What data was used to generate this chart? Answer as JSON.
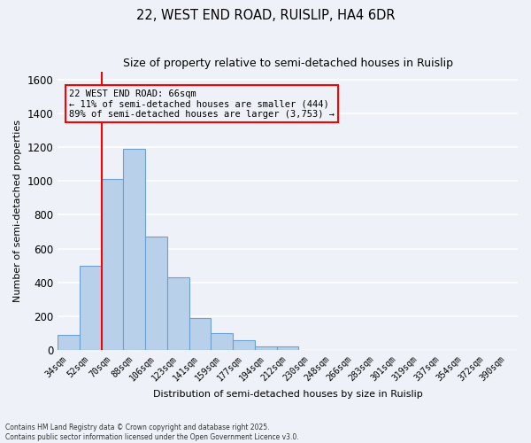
{
  "title": "22, WEST END ROAD, RUISLIP, HA4 6DR",
  "subtitle": "Size of property relative to semi-detached houses in Ruislip",
  "xlabel": "Distribution of semi-detached houses by size in Ruislip",
  "ylabel": "Number of semi-detached properties",
  "categories": [
    "34sqm",
    "52sqm",
    "70sqm",
    "88sqm",
    "106sqm",
    "123sqm",
    "141sqm",
    "159sqm",
    "177sqm",
    "194sqm",
    "212sqm",
    "230sqm",
    "248sqm",
    "266sqm",
    "283sqm",
    "301sqm",
    "319sqm",
    "337sqm",
    "354sqm",
    "372sqm",
    "390sqm"
  ],
  "values": [
    90,
    500,
    1010,
    1190,
    670,
    430,
    190,
    100,
    55,
    20,
    20,
    0,
    0,
    0,
    0,
    0,
    0,
    0,
    0,
    0,
    0
  ],
  "bar_color": "#b8d0ea",
  "bar_edge_color": "#6ca0d0",
  "ylim": [
    0,
    1650
  ],
  "yticks": [
    0,
    200,
    400,
    600,
    800,
    1000,
    1200,
    1400,
    1600
  ],
  "red_line_x": 1.5,
  "annotation_title": "22 WEST END ROAD: 66sqm",
  "annotation_line1": "← 11% of semi-detached houses are smaller (444)",
  "annotation_line2": "89% of semi-detached houses are larger (3,753) →",
  "footer_line1": "Contains HM Land Registry data © Crown copyright and database right 2025.",
  "footer_line2": "Contains public sector information licensed under the Open Government Licence v3.0.",
  "bg_color": "#eef2f8",
  "grid_color": "#ffffff"
}
